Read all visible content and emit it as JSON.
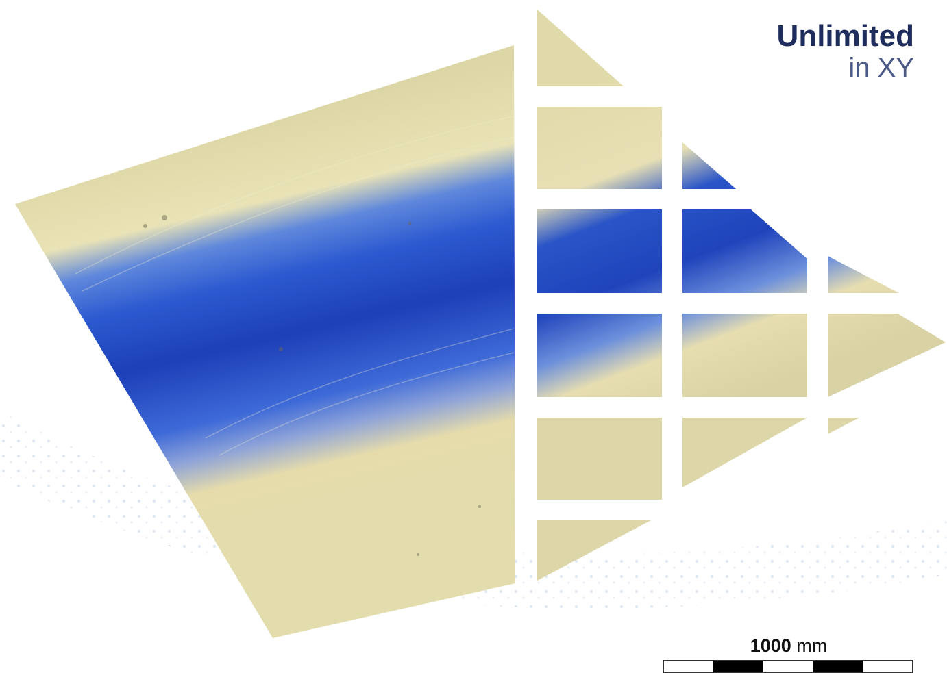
{
  "headline": {
    "strong": "Unlimited",
    "light": "in XY"
  },
  "colors": {
    "headline_strong": "#1f2d5c",
    "headline_light": "#4b5a86",
    "surface_base": "#e3dcad",
    "surface_deep": "#1d3fb8",
    "surface_mid": "#4a78e0",
    "scale_dark": "#000000",
    "scale_light": "#ffffff",
    "background_dots": "#dde7f1"
  },
  "scale_bar": {
    "value": "1000",
    "unit": "mm",
    "segments": [
      "light",
      "dark",
      "light",
      "dark",
      "light"
    ]
  }
}
